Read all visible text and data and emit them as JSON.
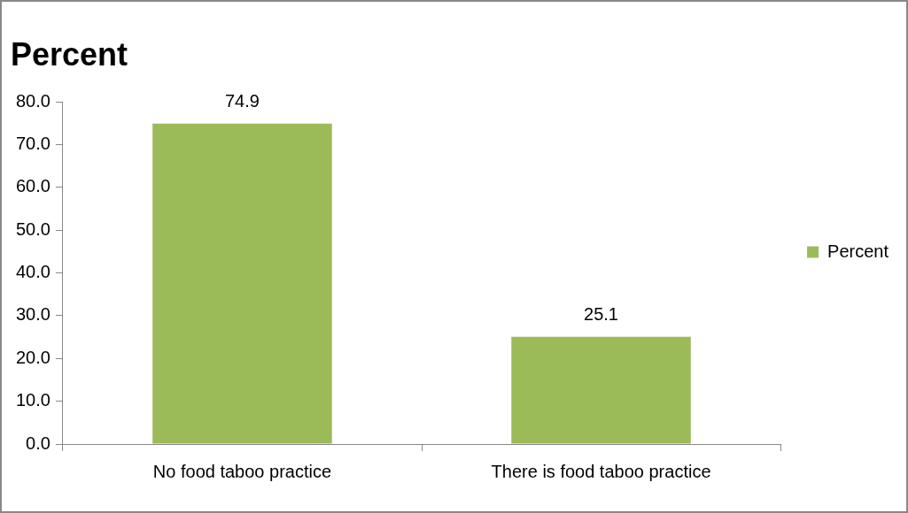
{
  "chart_data": {
    "type": "bar",
    "title": "Percent",
    "categories": [
      "No food taboo practice",
      "There is food taboo practice"
    ],
    "series": [
      {
        "name": "Percent",
        "color": "#9bbb59",
        "values": [
          74.9,
          25.1
        ]
      }
    ],
    "ylim": [
      0,
      80
    ],
    "yticks": [
      {
        "value": 0,
        "label": "0.0"
      },
      {
        "value": 10,
        "label": "10.0"
      },
      {
        "value": 20,
        "label": "20.0"
      },
      {
        "value": 30,
        "label": "30.0"
      },
      {
        "value": 40,
        "label": "40.0"
      },
      {
        "value": 50,
        "label": "50.0"
      },
      {
        "value": 60,
        "label": "60.0"
      },
      {
        "value": 70,
        "label": "70.0"
      },
      {
        "value": 80,
        "label": "80.0"
      }
    ],
    "grid": false,
    "legend": "right",
    "data_labels": true
  }
}
